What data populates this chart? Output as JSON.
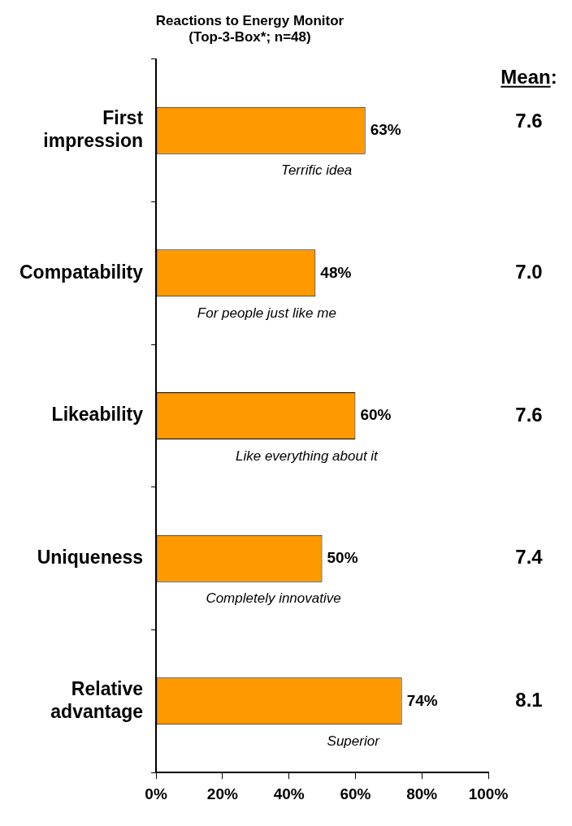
{
  "chart_data": {
    "type": "bar",
    "orientation": "horizontal",
    "title": "Reactions to Energy Monitor\n(Top-3-Box*; n=48)",
    "categories": [
      "First impression",
      "Compatability",
      "Likeability",
      "Uniqueness",
      "Relative advantage"
    ],
    "values": [
      63,
      48,
      60,
      50,
      74
    ],
    "color": "#ff9900",
    "value_labels": [
      "63%",
      "48%",
      "60%",
      "50%",
      "74%"
    ],
    "xlim": [
      0,
      100
    ],
    "xticks": [
      {
        "value": 0,
        "label": "0%"
      },
      {
        "value": 20,
        "label": "20%"
      },
      {
        "value": 40,
        "label": "40%"
      },
      {
        "value": 60,
        "label": "60%"
      },
      {
        "value": 80,
        "label": "80%"
      },
      {
        "value": 100,
        "label": "100%"
      }
    ],
    "y2label": "Mean:",
    "y2_categories": [
      "7.6",
      "7.0",
      "7.6",
      "7.4",
      "8.1"
    ],
    "annotations": [
      "Terrific idea",
      "For people just like me",
      "Like everything about it",
      "Completely innovative",
      "Superior"
    ],
    "grid": false,
    "legend": false
  }
}
